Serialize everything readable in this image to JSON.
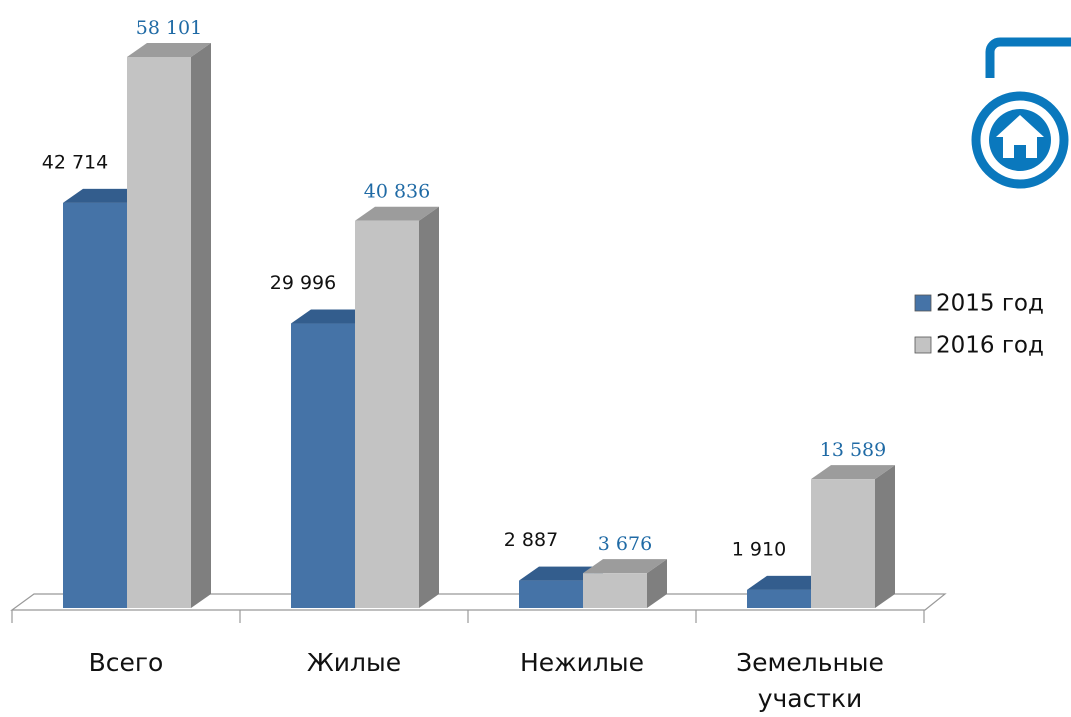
{
  "chart_data": {
    "type": "bar3d",
    "categories": [
      "Всего",
      "Жилые",
      "Нежилые",
      "Земельные участки"
    ],
    "series": [
      {
        "name": "2015 год",
        "color": "#4573a7",
        "label_color": "#111111",
        "values": [
          42714,
          29996,
          2887,
          1910
        ],
        "value_labels": [
          "42 714",
          "29 996",
          "2 887",
          "1 910"
        ]
      },
      {
        "name": "2016 год",
        "color": "#c3c3c3",
        "label_color": "#1f6aa5",
        "values": [
          58101,
          40836,
          3676,
          13589
        ],
        "value_labels": [
          "58 101",
          "40 836",
          "3 676",
          "13 589"
        ]
      }
    ],
    "legend": "right"
  }
}
